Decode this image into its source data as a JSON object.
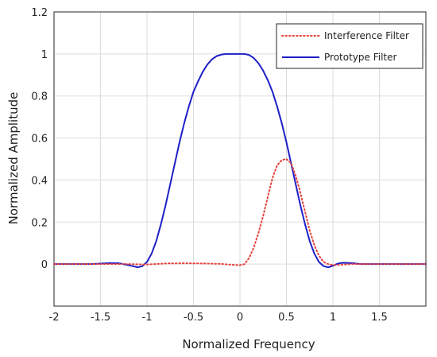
{
  "chart_data": {
    "type": "line",
    "title": "",
    "xlabel": "Normalized Frequency",
    "ylabel": "Normalized Amplitude",
    "xlim": [
      -2,
      2
    ],
    "ylim": [
      -0.2,
      1.2
    ],
    "xticks": [
      -2,
      -1.5,
      -1,
      -0.5,
      0,
      0.5,
      1,
      1.5
    ],
    "xtick_labels": [
      "-2",
      "-1.5",
      "-1",
      "-0.5",
      "0",
      "0.5",
      "1",
      "1.5"
    ],
    "yticks": [
      0,
      0.2,
      0.4,
      0.6,
      0.8,
      1,
      1.2
    ],
    "ytick_labels": [
      "0",
      "0.2",
      "0.4",
      "0.6",
      "0.8",
      "1",
      "1.2"
    ],
    "grid": true,
    "legend_position": "top-right",
    "series": [
      {
        "name": "Interference Filter",
        "color": "#e8413b",
        "style": "dotted",
        "x": [
          -2.0,
          -1.8,
          -1.6,
          -1.4,
          -1.2,
          -1.0,
          -0.8,
          -0.6,
          -0.4,
          -0.2,
          -0.1,
          0.0,
          0.05,
          0.1,
          0.15,
          0.2,
          0.25,
          0.3,
          0.35,
          0.4,
          0.45,
          0.5,
          0.55,
          0.6,
          0.65,
          0.7,
          0.75,
          0.8,
          0.85,
          0.9,
          0.95,
          1.0,
          1.1,
          1.2,
          1.4,
          1.6,
          1.8,
          2.0
        ],
        "y": [
          0.0,
          0.0,
          0.0,
          0.0,
          0.0,
          -0.002,
          0.003,
          0.004,
          0.003,
          0.001,
          -0.003,
          -0.005,
          0.0,
          0.03,
          0.08,
          0.15,
          0.23,
          0.32,
          0.41,
          0.47,
          0.495,
          0.5,
          0.48,
          0.42,
          0.34,
          0.25,
          0.16,
          0.09,
          0.04,
          0.01,
          0.0,
          -0.005,
          -0.003,
          0.0,
          0.0,
          0.0,
          0.0,
          0.0
        ]
      },
      {
        "name": "Prototype Filter",
        "color": "#1f1fc8",
        "style": "solid",
        "x": [
          -2.0,
          -1.8,
          -1.6,
          -1.4,
          -1.3,
          -1.2,
          -1.1,
          -1.05,
          -1.0,
          -0.95,
          -0.9,
          -0.85,
          -0.8,
          -0.75,
          -0.7,
          -0.65,
          -0.6,
          -0.55,
          -0.5,
          -0.45,
          -0.4,
          -0.35,
          -0.3,
          -0.25,
          -0.2,
          -0.15,
          -0.1,
          -0.05,
          0.0,
          0.05,
          0.1,
          0.15,
          0.2,
          0.25,
          0.3,
          0.35,
          0.4,
          0.45,
          0.5,
          0.55,
          0.6,
          0.65,
          0.7,
          0.75,
          0.8,
          0.85,
          0.9,
          0.95,
          1.0,
          1.05,
          1.1,
          1.2,
          1.3,
          1.4,
          1.6,
          1.8,
          2.0
        ],
        "y": [
          0.0,
          0.0,
          0.0,
          0.005,
          0.004,
          -0.005,
          -0.015,
          -0.01,
          0.01,
          0.05,
          0.11,
          0.19,
          0.28,
          0.38,
          0.48,
          0.58,
          0.67,
          0.75,
          0.82,
          0.87,
          0.915,
          0.95,
          0.975,
          0.99,
          0.997,
          1.0,
          1.0,
          1.0,
          1.0,
          1.0,
          0.995,
          0.98,
          0.955,
          0.92,
          0.875,
          0.82,
          0.75,
          0.67,
          0.58,
          0.48,
          0.38,
          0.28,
          0.19,
          0.11,
          0.05,
          0.01,
          -0.01,
          -0.015,
          -0.008,
          0.002,
          0.006,
          0.005,
          0.0,
          0.0,
          0.0,
          0.0,
          0.0
        ]
      }
    ]
  }
}
